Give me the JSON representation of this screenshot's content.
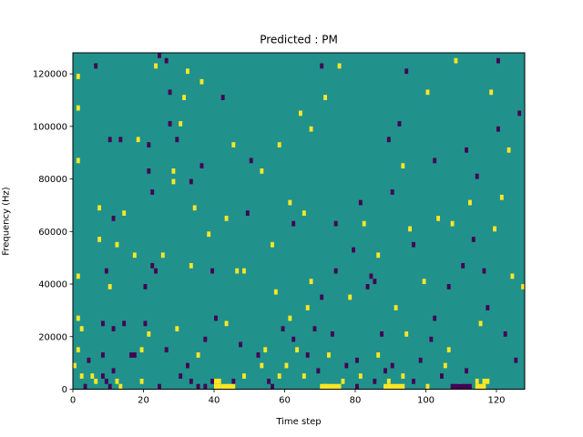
{
  "chart_data": {
    "type": "heatmap",
    "title": "Predicted : PM",
    "xlabel": "Time step",
    "ylabel": "Frequency (Hz)",
    "xlim": [
      0,
      128
    ],
    "ylim": [
      0,
      128000
    ],
    "x_ticks": [
      0,
      20,
      40,
      60,
      80,
      100,
      120
    ],
    "y_ticks": [
      0,
      20000,
      40000,
      60000,
      80000,
      100000,
      120000
    ],
    "grid": false,
    "legend": "none",
    "value_levels": [
      -1,
      0,
      1
    ],
    "colors": {
      "-1": "#440154",
      "0": "#21918c",
      "1": "#fde725"
    },
    "n_time_steps": 128,
    "n_frequency_bins": 64,
    "bin_width_hz": 2000,
    "background_value": 0,
    "cells": [
      {
        "t": 0,
        "f_hz": 8000,
        "v": 1
      },
      {
        "t": 1,
        "f_hz": 14000,
        "v": 1
      },
      {
        "t": 1,
        "f_hz": 26000,
        "v": 1
      },
      {
        "t": 1,
        "f_hz": 42000,
        "v": 1
      },
      {
        "t": 1,
        "f_hz": 86000,
        "v": 1
      },
      {
        "t": 1,
        "f_hz": 106000,
        "v": 1
      },
      {
        "t": 1,
        "f_hz": 118000,
        "v": 1
      },
      {
        "t": 2,
        "f_hz": 4000,
        "v": 1
      },
      {
        "t": 2,
        "f_hz": 22000,
        "v": 1
      },
      {
        "t": 3,
        "f_hz": 0,
        "v": -1
      },
      {
        "t": 4,
        "f_hz": 10000,
        "v": -1
      },
      {
        "t": 5,
        "f_hz": 4000,
        "v": 1
      },
      {
        "t": 6,
        "f_hz": 2000,
        "v": 1
      },
      {
        "t": 6,
        "f_hz": 122000,
        "v": -1
      },
      {
        "t": 7,
        "f_hz": 56000,
        "v": 1
      },
      {
        "t": 7,
        "f_hz": 68000,
        "v": 1
      },
      {
        "t": 8,
        "f_hz": 4000,
        "v": -1
      },
      {
        "t": 8,
        "f_hz": 12000,
        "v": -1
      },
      {
        "t": 8,
        "f_hz": 24000,
        "v": -1
      },
      {
        "t": 9,
        "f_hz": 2000,
        "v": -1
      },
      {
        "t": 9,
        "f_hz": 44000,
        "v": -1
      },
      {
        "t": 10,
        "f_hz": 0,
        "v": -1
      },
      {
        "t": 10,
        "f_hz": 38000,
        "v": 1
      },
      {
        "t": 10,
        "f_hz": 94000,
        "v": -1
      },
      {
        "t": 11,
        "f_hz": 6000,
        "v": -1
      },
      {
        "t": 11,
        "f_hz": 22000,
        "v": -1
      },
      {
        "t": 11,
        "f_hz": 64000,
        "v": -1
      },
      {
        "t": 12,
        "f_hz": 2000,
        "v": 1
      },
      {
        "t": 12,
        "f_hz": 54000,
        "v": 1
      },
      {
        "t": 13,
        "f_hz": 0,
        "v": 1
      },
      {
        "t": 13,
        "f_hz": 94000,
        "v": -1
      },
      {
        "t": 14,
        "f_hz": 24000,
        "v": -1
      },
      {
        "t": 14,
        "f_hz": 66000,
        "v": 1
      },
      {
        "t": 16,
        "f_hz": 12000,
        "v": -1
      },
      {
        "t": 17,
        "f_hz": 12000,
        "v": -1
      },
      {
        "t": 17,
        "f_hz": 50000,
        "v": 1
      },
      {
        "t": 18,
        "f_hz": 94000,
        "v": 1
      },
      {
        "t": 19,
        "f_hz": 2000,
        "v": 1
      },
      {
        "t": 19,
        "f_hz": 14000,
        "v": 1
      },
      {
        "t": 20,
        "f_hz": 24000,
        "v": -1
      },
      {
        "t": 20,
        "f_hz": 38000,
        "v": -1
      },
      {
        "t": 21,
        "f_hz": 20000,
        "v": 1
      },
      {
        "t": 21,
        "f_hz": 82000,
        "v": -1
      },
      {
        "t": 21,
        "f_hz": 92000,
        "v": -1
      },
      {
        "t": 22,
        "f_hz": 46000,
        "v": -1
      },
      {
        "t": 22,
        "f_hz": 74000,
        "v": -1
      },
      {
        "t": 23,
        "f_hz": 44000,
        "v": -1
      },
      {
        "t": 23,
        "f_hz": 122000,
        "v": 1
      },
      {
        "t": 24,
        "f_hz": 0,
        "v": -1
      },
      {
        "t": 24,
        "f_hz": 126000,
        "v": -1
      },
      {
        "t": 25,
        "f_hz": 50000,
        "v": 1
      },
      {
        "t": 26,
        "f_hz": 14000,
        "v": -1
      },
      {
        "t": 26,
        "f_hz": 124000,
        "v": -1
      },
      {
        "t": 27,
        "f_hz": 100000,
        "v": -1
      },
      {
        "t": 27,
        "f_hz": 112000,
        "v": -1
      },
      {
        "t": 28,
        "f_hz": 78000,
        "v": 1
      },
      {
        "t": 28,
        "f_hz": 82000,
        "v": 1
      },
      {
        "t": 29,
        "f_hz": 22000,
        "v": 1
      },
      {
        "t": 29,
        "f_hz": 94000,
        "v": -1
      },
      {
        "t": 30,
        "f_hz": 4000,
        "v": -1
      },
      {
        "t": 30,
        "f_hz": 100000,
        "v": 1
      },
      {
        "t": 31,
        "f_hz": 110000,
        "v": 1
      },
      {
        "t": 32,
        "f_hz": 8000,
        "v": -1
      },
      {
        "t": 32,
        "f_hz": 120000,
        "v": 1
      },
      {
        "t": 33,
        "f_hz": 2000,
        "v": -1
      },
      {
        "t": 33,
        "f_hz": 46000,
        "v": 1
      },
      {
        "t": 33,
        "f_hz": 78000,
        "v": -1
      },
      {
        "t": 34,
        "f_hz": 68000,
        "v": 1
      },
      {
        "t": 35,
        "f_hz": 0,
        "v": -1
      },
      {
        "t": 35,
        "f_hz": 12000,
        "v": 1
      },
      {
        "t": 36,
        "f_hz": 84000,
        "v": -1
      },
      {
        "t": 36,
        "f_hz": 116000,
        "v": 1
      },
      {
        "t": 37,
        "f_hz": 0,
        "v": -1
      },
      {
        "t": 37,
        "f_hz": 18000,
        "v": -1
      },
      {
        "t": 38,
        "f_hz": 58000,
        "v": 1
      },
      {
        "t": 39,
        "f_hz": 2000,
        "v": -1
      },
      {
        "t": 39,
        "f_hz": 44000,
        "v": -1
      },
      {
        "t": 40,
        "f_hz": 26000,
        "v": -1
      },
      {
        "t": 42,
        "f_hz": 110000,
        "v": -1
      },
      {
        "t": 43,
        "f_hz": 24000,
        "v": 1
      },
      {
        "t": 43,
        "f_hz": 64000,
        "v": 1
      },
      {
        "t": 45,
        "f_hz": 2000,
        "v": -1
      },
      {
        "t": 45,
        "f_hz": 92000,
        "v": 1
      },
      {
        "t": 46,
        "f_hz": 44000,
        "v": 1
      },
      {
        "t": 47,
        "f_hz": 16000,
        "v": -1
      },
      {
        "t": 48,
        "f_hz": 4000,
        "v": 1
      },
      {
        "t": 48,
        "f_hz": 44000,
        "v": 1
      },
      {
        "t": 49,
        "f_hz": 66000,
        "v": -1
      },
      {
        "t": 50,
        "f_hz": 86000,
        "v": -1
      },
      {
        "t": 52,
        "f_hz": 12000,
        "v": -1
      },
      {
        "t": 53,
        "f_hz": 8000,
        "v": 1
      },
      {
        "t": 53,
        "f_hz": 82000,
        "v": 1
      },
      {
        "t": 54,
        "f_hz": 14000,
        "v": 1
      },
      {
        "t": 55,
        "f_hz": 2000,
        "v": -1
      },
      {
        "t": 56,
        "f_hz": 0,
        "v": -1
      },
      {
        "t": 56,
        "f_hz": 54000,
        "v": 1
      },
      {
        "t": 57,
        "f_hz": 36000,
        "v": 1
      },
      {
        "t": 58,
        "f_hz": 4000,
        "v": 1
      },
      {
        "t": 58,
        "f_hz": 92000,
        "v": 1
      },
      {
        "t": 59,
        "f_hz": 22000,
        "v": -1
      },
      {
        "t": 60,
        "f_hz": 8000,
        "v": 1
      },
      {
        "t": 61,
        "f_hz": 26000,
        "v": 1
      },
      {
        "t": 61,
        "f_hz": 70000,
        "v": 1
      },
      {
        "t": 62,
        "f_hz": 18000,
        "v": -1
      },
      {
        "t": 62,
        "f_hz": 62000,
        "v": -1
      },
      {
        "t": 63,
        "f_hz": 14000,
        "v": 1
      },
      {
        "t": 64,
        "f_hz": 104000,
        "v": 1
      },
      {
        "t": 65,
        "f_hz": 4000,
        "v": 1
      },
      {
        "t": 65,
        "f_hz": 66000,
        "v": 1
      },
      {
        "t": 66,
        "f_hz": 12000,
        "v": -1
      },
      {
        "t": 66,
        "f_hz": 30000,
        "v": 1
      },
      {
        "t": 67,
        "f_hz": 40000,
        "v": 1
      },
      {
        "t": 67,
        "f_hz": 98000,
        "v": 1
      },
      {
        "t": 68,
        "f_hz": 22000,
        "v": -1
      },
      {
        "t": 69,
        "f_hz": 6000,
        "v": -1
      },
      {
        "t": 70,
        "f_hz": 34000,
        "v": -1
      },
      {
        "t": 70,
        "f_hz": 122000,
        "v": -1
      },
      {
        "t": 71,
        "f_hz": 0,
        "v": 1
      },
      {
        "t": 71,
        "f_hz": 110000,
        "v": 1
      },
      {
        "t": 72,
        "f_hz": 12000,
        "v": 1
      },
      {
        "t": 73,
        "f_hz": 20000,
        "v": -1
      },
      {
        "t": 74,
        "f_hz": 44000,
        "v": -1
      },
      {
        "t": 74,
        "f_hz": 62000,
        "v": -1
      },
      {
        "t": 75,
        "f_hz": 122000,
        "v": 1
      },
      {
        "t": 76,
        "f_hz": 2000,
        "v": 1
      },
      {
        "t": 77,
        "f_hz": 8000,
        "v": -1
      },
      {
        "t": 78,
        "f_hz": 34000,
        "v": 1
      },
      {
        "t": 79,
        "f_hz": 52000,
        "v": -1
      },
      {
        "t": 80,
        "f_hz": 0,
        "v": -1
      },
      {
        "t": 80,
        "f_hz": 10000,
        "v": -1
      },
      {
        "t": 81,
        "f_hz": 4000,
        "v": 1
      },
      {
        "t": 81,
        "f_hz": 70000,
        "v": -1
      },
      {
        "t": 82,
        "f_hz": 62000,
        "v": 1
      },
      {
        "t": 83,
        "f_hz": 38000,
        "v": -1
      },
      {
        "t": 84,
        "f_hz": 42000,
        "v": -1
      },
      {
        "t": 85,
        "f_hz": 2000,
        "v": -1
      },
      {
        "t": 85,
        "f_hz": 40000,
        "v": -1
      },
      {
        "t": 86,
        "f_hz": 12000,
        "v": 1
      },
      {
        "t": 86,
        "f_hz": 50000,
        "v": 1
      },
      {
        "t": 87,
        "f_hz": 20000,
        "v": -1
      },
      {
        "t": 88,
        "f_hz": 6000,
        "v": -1
      },
      {
        "t": 89,
        "f_hz": 2000,
        "v": 1
      },
      {
        "t": 89,
        "f_hz": 94000,
        "v": -1
      },
      {
        "t": 90,
        "f_hz": 8000,
        "v": -1
      },
      {
        "t": 90,
        "f_hz": 74000,
        "v": -1
      },
      {
        "t": 91,
        "f_hz": 30000,
        "v": 1
      },
      {
        "t": 92,
        "f_hz": 100000,
        "v": -1
      },
      {
        "t": 93,
        "f_hz": 4000,
        "v": 1
      },
      {
        "t": 93,
        "f_hz": 84000,
        "v": 1
      },
      {
        "t": 94,
        "f_hz": 20000,
        "v": 1
      },
      {
        "t": 94,
        "f_hz": 120000,
        "v": -1
      },
      {
        "t": 95,
        "f_hz": 60000,
        "v": 1
      },
      {
        "t": 96,
        "f_hz": 2000,
        "v": -1
      },
      {
        "t": 96,
        "f_hz": 54000,
        "v": -1
      },
      {
        "t": 98,
        "f_hz": 10000,
        "v": -1
      },
      {
        "t": 99,
        "f_hz": 40000,
        "v": 1
      },
      {
        "t": 100,
        "f_hz": 0,
        "v": 1
      },
      {
        "t": 100,
        "f_hz": 112000,
        "v": 1
      },
      {
        "t": 101,
        "f_hz": 18000,
        "v": -1
      },
      {
        "t": 102,
        "f_hz": 26000,
        "v": -1
      },
      {
        "t": 102,
        "f_hz": 86000,
        "v": -1
      },
      {
        "t": 103,
        "f_hz": 64000,
        "v": 1
      },
      {
        "t": 104,
        "f_hz": 4000,
        "v": -1
      },
      {
        "t": 105,
        "f_hz": 8000,
        "v": 1
      },
      {
        "t": 106,
        "f_hz": 14000,
        "v": 1
      },
      {
        "t": 106,
        "f_hz": 38000,
        "v": -1
      },
      {
        "t": 107,
        "f_hz": 62000,
        "v": 1
      },
      {
        "t": 108,
        "f_hz": 124000,
        "v": 1
      },
      {
        "t": 109,
        "f_hz": 0,
        "v": 1
      },
      {
        "t": 110,
        "f_hz": 46000,
        "v": -1
      },
      {
        "t": 111,
        "f_hz": 6000,
        "v": -1
      },
      {
        "t": 111,
        "f_hz": 90000,
        "v": -1
      },
      {
        "t": 112,
        "f_hz": 70000,
        "v": 1
      },
      {
        "t": 113,
        "f_hz": 56000,
        "v": -1
      },
      {
        "t": 114,
        "f_hz": 2000,
        "v": 1
      },
      {
        "t": 114,
        "f_hz": 80000,
        "v": -1
      },
      {
        "t": 115,
        "f_hz": 24000,
        "v": 1
      },
      {
        "t": 116,
        "f_hz": 44000,
        "v": -1
      },
      {
        "t": 117,
        "f_hz": 30000,
        "v": -1
      },
      {
        "t": 118,
        "f_hz": 112000,
        "v": 1
      },
      {
        "t": 119,
        "f_hz": 60000,
        "v": 1
      },
      {
        "t": 120,
        "f_hz": 98000,
        "v": -1
      },
      {
        "t": 120,
        "f_hz": 124000,
        "v": -1
      },
      {
        "t": 121,
        "f_hz": 72000,
        "v": 1
      },
      {
        "t": 122,
        "f_hz": 20000,
        "v": -1
      },
      {
        "t": 123,
        "f_hz": 90000,
        "v": 1
      },
      {
        "t": 124,
        "f_hz": 42000,
        "v": 1
      },
      {
        "t": 125,
        "f_hz": 10000,
        "v": -1
      },
      {
        "t": 126,
        "f_hz": 104000,
        "v": -1
      },
      {
        "t": 127,
        "f_hz": 38000,
        "v": 1
      }
    ],
    "runs": [
      {
        "t_start": 40,
        "t_end": 41,
        "f_hz": 0,
        "v": 1
      },
      {
        "t_start": 40,
        "t_end": 41,
        "f_hz": 2000,
        "v": 1
      },
      {
        "t_start": 42,
        "t_end": 45,
        "f_hz": 0,
        "v": 1
      },
      {
        "t_start": 70,
        "t_end": 75,
        "f_hz": 0,
        "v": 1
      },
      {
        "t_start": 88,
        "t_end": 93,
        "f_hz": 0,
        "v": 1
      },
      {
        "t_start": 107,
        "t_end": 112,
        "f_hz": 0,
        "v": -1
      },
      {
        "t_start": 114,
        "t_end": 116,
        "f_hz": 0,
        "v": 1
      },
      {
        "t_start": 116,
        "t_end": 117,
        "f_hz": 2000,
        "v": 1
      }
    ]
  }
}
